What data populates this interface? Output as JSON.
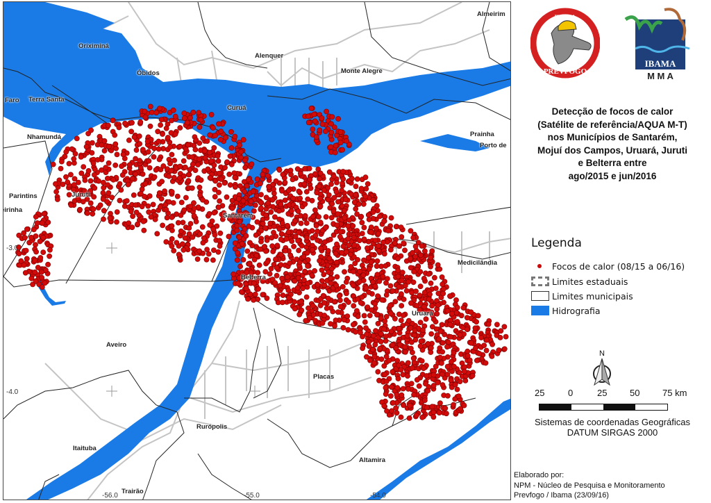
{
  "map": {
    "places": {
      "oriximina": "Oriximiná",
      "obidos": "Óbidos",
      "alenquer": "Alenquer",
      "almeirim": "Almeirim",
      "monte_alegre": "Monte Alegre",
      "curua": "Curuá",
      "faro": "Faro",
      "terra_santa": "Terra Santa",
      "nhamunda": "Nhamundá",
      "prainha": "Prainha",
      "porto_de": "Porto de",
      "parintins": "Parintins",
      "juruti": "Juruti",
      "eirinha": "eirinha",
      "santarem": "Santarém",
      "belterra": "Belterra",
      "medicilandia": "Medicilândia",
      "uruara": "Uruará",
      "aveiro": "Aveiro",
      "placas": "Placas",
      "ruropolis": "Rurópolis",
      "itaituba": "Itaituba",
      "trairao": "Trairão",
      "altamira": "Altamira"
    },
    "lat_labels": [
      "-3.0",
      "-4.0"
    ],
    "lon_labels": [
      "-56.0",
      "-55.0",
      "-54.0"
    ],
    "colors": {
      "fire_focus": "#d10a0a",
      "hydrography": "#1a7be6",
      "roads": "#bdbdbd",
      "municipal_limits": "#222222"
    }
  },
  "logos": {
    "prevfogo": {
      "top": "IBAMA",
      "bottom": "PREVFOGO"
    },
    "ibama_mma": {
      "line1": "IBAMA",
      "line2": "M M A"
    }
  },
  "title_lines": [
    "Detecção de focos de calor",
    "(Satélite de referência/AQUA M-T)",
    "nos Municípios de Santarém,",
    "Mojuí dos Campos, Uruará, Juruti",
    "e Belterra entre",
    "ago/2015 e  jun/2016"
  ],
  "legend": {
    "title": "Legenda",
    "items": [
      {
        "label": "Focos de calor (08/15 a 06/16)",
        "symbol": "red-dot"
      },
      {
        "label": "Limites estaduais",
        "symbol": "dashed-box"
      },
      {
        "label": "Limites municipais",
        "symbol": "outline-box"
      },
      {
        "label": "Hidrografia",
        "symbol": "blue-box"
      }
    ]
  },
  "north_arrow": "N",
  "scale_bar": {
    "labels": [
      "25",
      "0",
      "25",
      "50",
      "75 km"
    ]
  },
  "crs": {
    "line1": "Sistemas de coordenadas Geográficas",
    "line2": "DATUM SIRGAS 2000"
  },
  "credits": {
    "line1": "Elaborado por:",
    "line2": "NPM - Núcleo de Pesquisa e Monitoramento",
    "line3": "Prevfogo / Ibama (23/09/16)"
  }
}
